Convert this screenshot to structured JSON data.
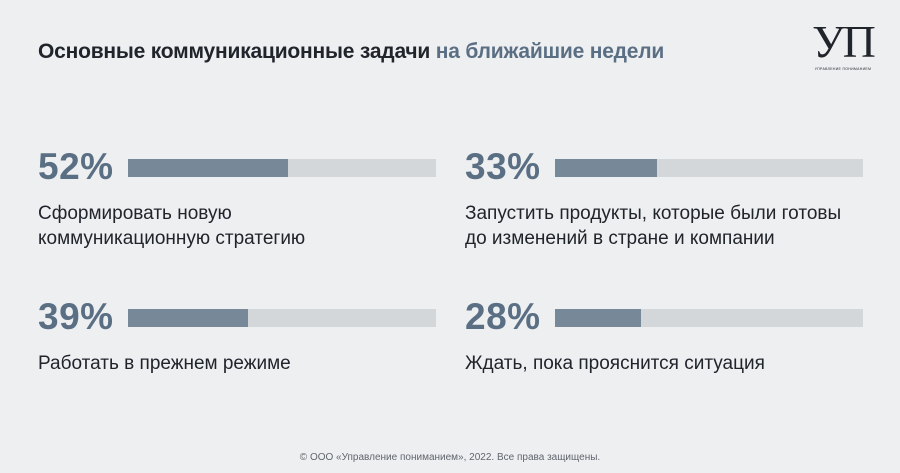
{
  "title": {
    "main": "Основные коммуникационные задачи",
    "accent": "на ближайшие недели"
  },
  "logo": {
    "mark": "УП",
    "subtitle": "Управление пониманием"
  },
  "chart_data": {
    "type": "bar",
    "categories": [
      "Сформировать новую коммуникационную стратегию",
      "Запустить продукты, которые были готовы до изменений в стране и компании",
      "Работать в прежнем режиме",
      "Ждать, пока прояснится ситуация"
    ],
    "values": [
      52,
      33,
      39,
      28
    ],
    "value_labels": [
      "52%",
      "33%",
      "39%",
      "28%"
    ],
    "label_lines": [
      [
        "Сформировать новую",
        "коммуникационную стратегию"
      ],
      [
        "Запустить продукты, которые были готовы",
        "до изменений в стране и компании"
      ],
      [
        "Работать в прежнем режиме"
      ],
      [
        "Ждать, пока прояснится ситуация"
      ]
    ],
    "ylim": [
      0,
      100
    ],
    "colors": {
      "fill": "#778899",
      "track": "#d3d7da",
      "value": "#5b6f84"
    }
  },
  "footer": "© ООО «Управление пониманием», 2022. Все права защищены."
}
